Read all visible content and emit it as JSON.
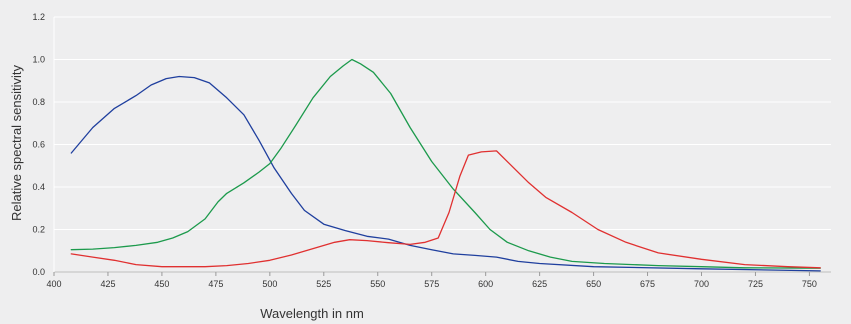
{
  "chart_data": {
    "type": "line",
    "title": "",
    "xlabel": "Wavelength in nm",
    "ylabel": "Relative spectral sensitivity",
    "xlim": [
      400,
      760
    ],
    "ylim": [
      0,
      1.2
    ],
    "xticks": [
      "400",
      "425",
      "450",
      "475",
      "500",
      "525",
      "550",
      "575",
      "600",
      "625",
      "650",
      "675",
      "700",
      "725",
      "750"
    ],
    "yticks": [
      "0.0",
      "0.2",
      "0.4",
      "0.6",
      "0.8",
      "1.0",
      "1.2"
    ],
    "grid": true,
    "legend": "none",
    "series": [
      {
        "color": "#1f3f9e",
        "points": [
          [
            408,
            0.56
          ],
          [
            418,
            0.68
          ],
          [
            428,
            0.77
          ],
          [
            438,
            0.83
          ],
          [
            445,
            0.88
          ],
          [
            452,
            0.91
          ],
          [
            458,
            0.92
          ],
          [
            465,
            0.915
          ],
          [
            472,
            0.89
          ],
          [
            480,
            0.82
          ],
          [
            488,
            0.74
          ],
          [
            495,
            0.62
          ],
          [
            502,
            0.49
          ],
          [
            510,
            0.37
          ],
          [
            516,
            0.29
          ],
          [
            525,
            0.225
          ],
          [
            535,
            0.195
          ],
          [
            545,
            0.168
          ],
          [
            555,
            0.155
          ],
          [
            565,
            0.125
          ],
          [
            575,
            0.105
          ],
          [
            585,
            0.085
          ],
          [
            595,
            0.078
          ],
          [
            605,
            0.07
          ],
          [
            615,
            0.05
          ],
          [
            625,
            0.04
          ],
          [
            650,
            0.025
          ],
          [
            700,
            0.015
          ],
          [
            755,
            0.005
          ]
        ]
      },
      {
        "color": "#1c9a4c",
        "points": [
          [
            408,
            0.105
          ],
          [
            418,
            0.108
          ],
          [
            428,
            0.115
          ],
          [
            438,
            0.125
          ],
          [
            448,
            0.14
          ],
          [
            455,
            0.16
          ],
          [
            462,
            0.19
          ],
          [
            470,
            0.25
          ],
          [
            476,
            0.33
          ],
          [
            480,
            0.37
          ],
          [
            488,
            0.42
          ],
          [
            495,
            0.47
          ],
          [
            500,
            0.51
          ],
          [
            505,
            0.58
          ],
          [
            512,
            0.69
          ],
          [
            520,
            0.82
          ],
          [
            528,
            0.92
          ],
          [
            534,
            0.97
          ],
          [
            538,
            1.0
          ],
          [
            542,
            0.98
          ],
          [
            548,
            0.94
          ],
          [
            556,
            0.84
          ],
          [
            565,
            0.68
          ],
          [
            575,
            0.52
          ],
          [
            585,
            0.39
          ],
          [
            595,
            0.28
          ],
          [
            602,
            0.2
          ],
          [
            610,
            0.14
          ],
          [
            620,
            0.1
          ],
          [
            630,
            0.07
          ],
          [
            640,
            0.05
          ],
          [
            655,
            0.04
          ],
          [
            680,
            0.03
          ],
          [
            700,
            0.025
          ],
          [
            720,
            0.02
          ],
          [
            755,
            0.018
          ]
        ]
      },
      {
        "color": "#e03030",
        "points": [
          [
            408,
            0.085
          ],
          [
            418,
            0.07
          ],
          [
            428,
            0.055
          ],
          [
            438,
            0.035
          ],
          [
            450,
            0.025
          ],
          [
            470,
            0.025
          ],
          [
            480,
            0.03
          ],
          [
            490,
            0.04
          ],
          [
            500,
            0.055
          ],
          [
            510,
            0.08
          ],
          [
            520,
            0.11
          ],
          [
            530,
            0.14
          ],
          [
            537,
            0.152
          ],
          [
            545,
            0.148
          ],
          [
            555,
            0.138
          ],
          [
            565,
            0.13
          ],
          [
            572,
            0.14
          ],
          [
            578,
            0.16
          ],
          [
            583,
            0.28
          ],
          [
            588,
            0.45
          ],
          [
            592,
            0.55
          ],
          [
            598,
            0.565
          ],
          [
            605,
            0.57
          ],
          [
            612,
            0.5
          ],
          [
            620,
            0.42
          ],
          [
            628,
            0.35
          ],
          [
            640,
            0.28
          ],
          [
            652,
            0.2
          ],
          [
            665,
            0.14
          ],
          [
            680,
            0.09
          ],
          [
            700,
            0.06
          ],
          [
            720,
            0.035
          ],
          [
            740,
            0.025
          ],
          [
            755,
            0.02
          ]
        ]
      }
    ]
  }
}
